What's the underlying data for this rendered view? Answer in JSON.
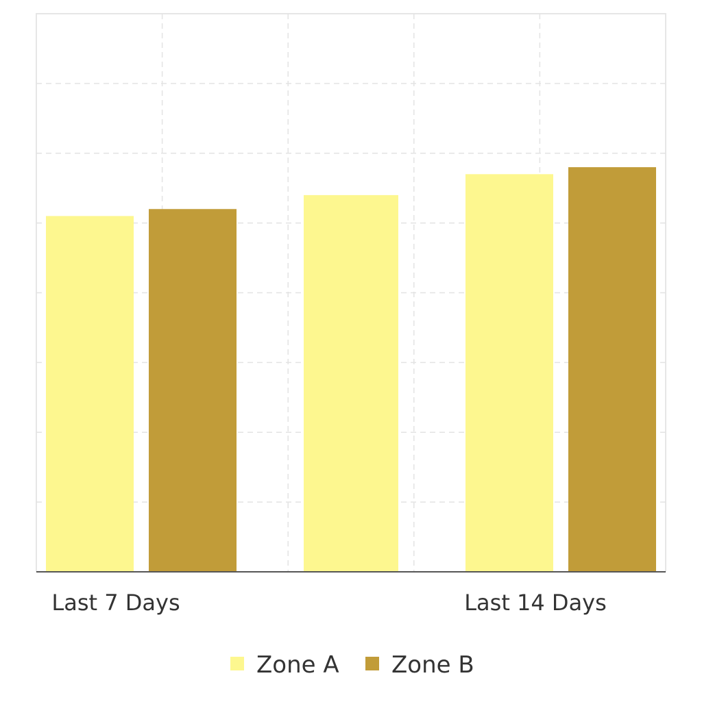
{
  "chart_data": {
    "type": "bar",
    "categories": [
      "Last 7 Days",
      "",
      "Last 14 Days"
    ],
    "series": [
      {
        "name": "Zone A",
        "color": "#fdf78f",
        "values": [
          5.1,
          5.4,
          5.7
        ]
      },
      {
        "name": "Zone B",
        "color": "#c19c39",
        "values": [
          5.2,
          null,
          5.8
        ]
      }
    ],
    "ylim": [
      0,
      8
    ],
    "grid": true,
    "legend_position": "bottom-center"
  }
}
